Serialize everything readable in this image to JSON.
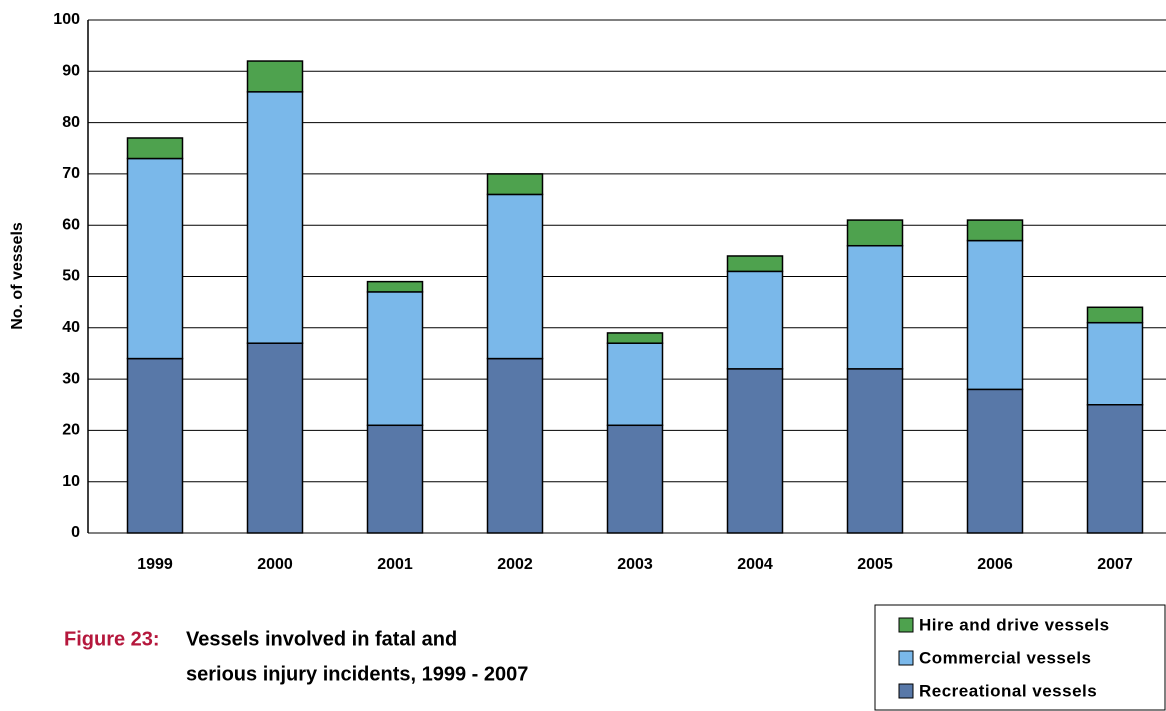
{
  "chart_data": {
    "type": "stacked-bar",
    "y_label": "No. of vessels",
    "categories": [
      "1999",
      "2000",
      "2001",
      "2002",
      "2003",
      "2004",
      "2005",
      "2006",
      "2007"
    ],
    "series": [
      {
        "name": "Recreational vessels",
        "color": "#5878a8",
        "values": [
          34,
          37,
          21,
          34,
          21,
          32,
          32,
          28,
          25
        ]
      },
      {
        "name": "Commercial vessels",
        "color": "#7ab8ea",
        "values": [
          39,
          49,
          26,
          32,
          16,
          19,
          24,
          29,
          16
        ]
      },
      {
        "name": "Hire and drive vessels",
        "color": "#4ea24e",
        "values": [
          4,
          6,
          2,
          4,
          2,
          3,
          5,
          4,
          3
        ]
      }
    ],
    "ylim": [
      0,
      100
    ],
    "yticks": [
      0,
      10,
      20,
      30,
      40,
      50,
      60,
      70,
      80,
      90,
      100
    ],
    "grid": true,
    "legend": "bottom-right",
    "figure_label": "Figure 23:",
    "caption": [
      "Vessels involved in fatal and",
      "serious injury incidents, 1999 - 2007"
    ]
  }
}
